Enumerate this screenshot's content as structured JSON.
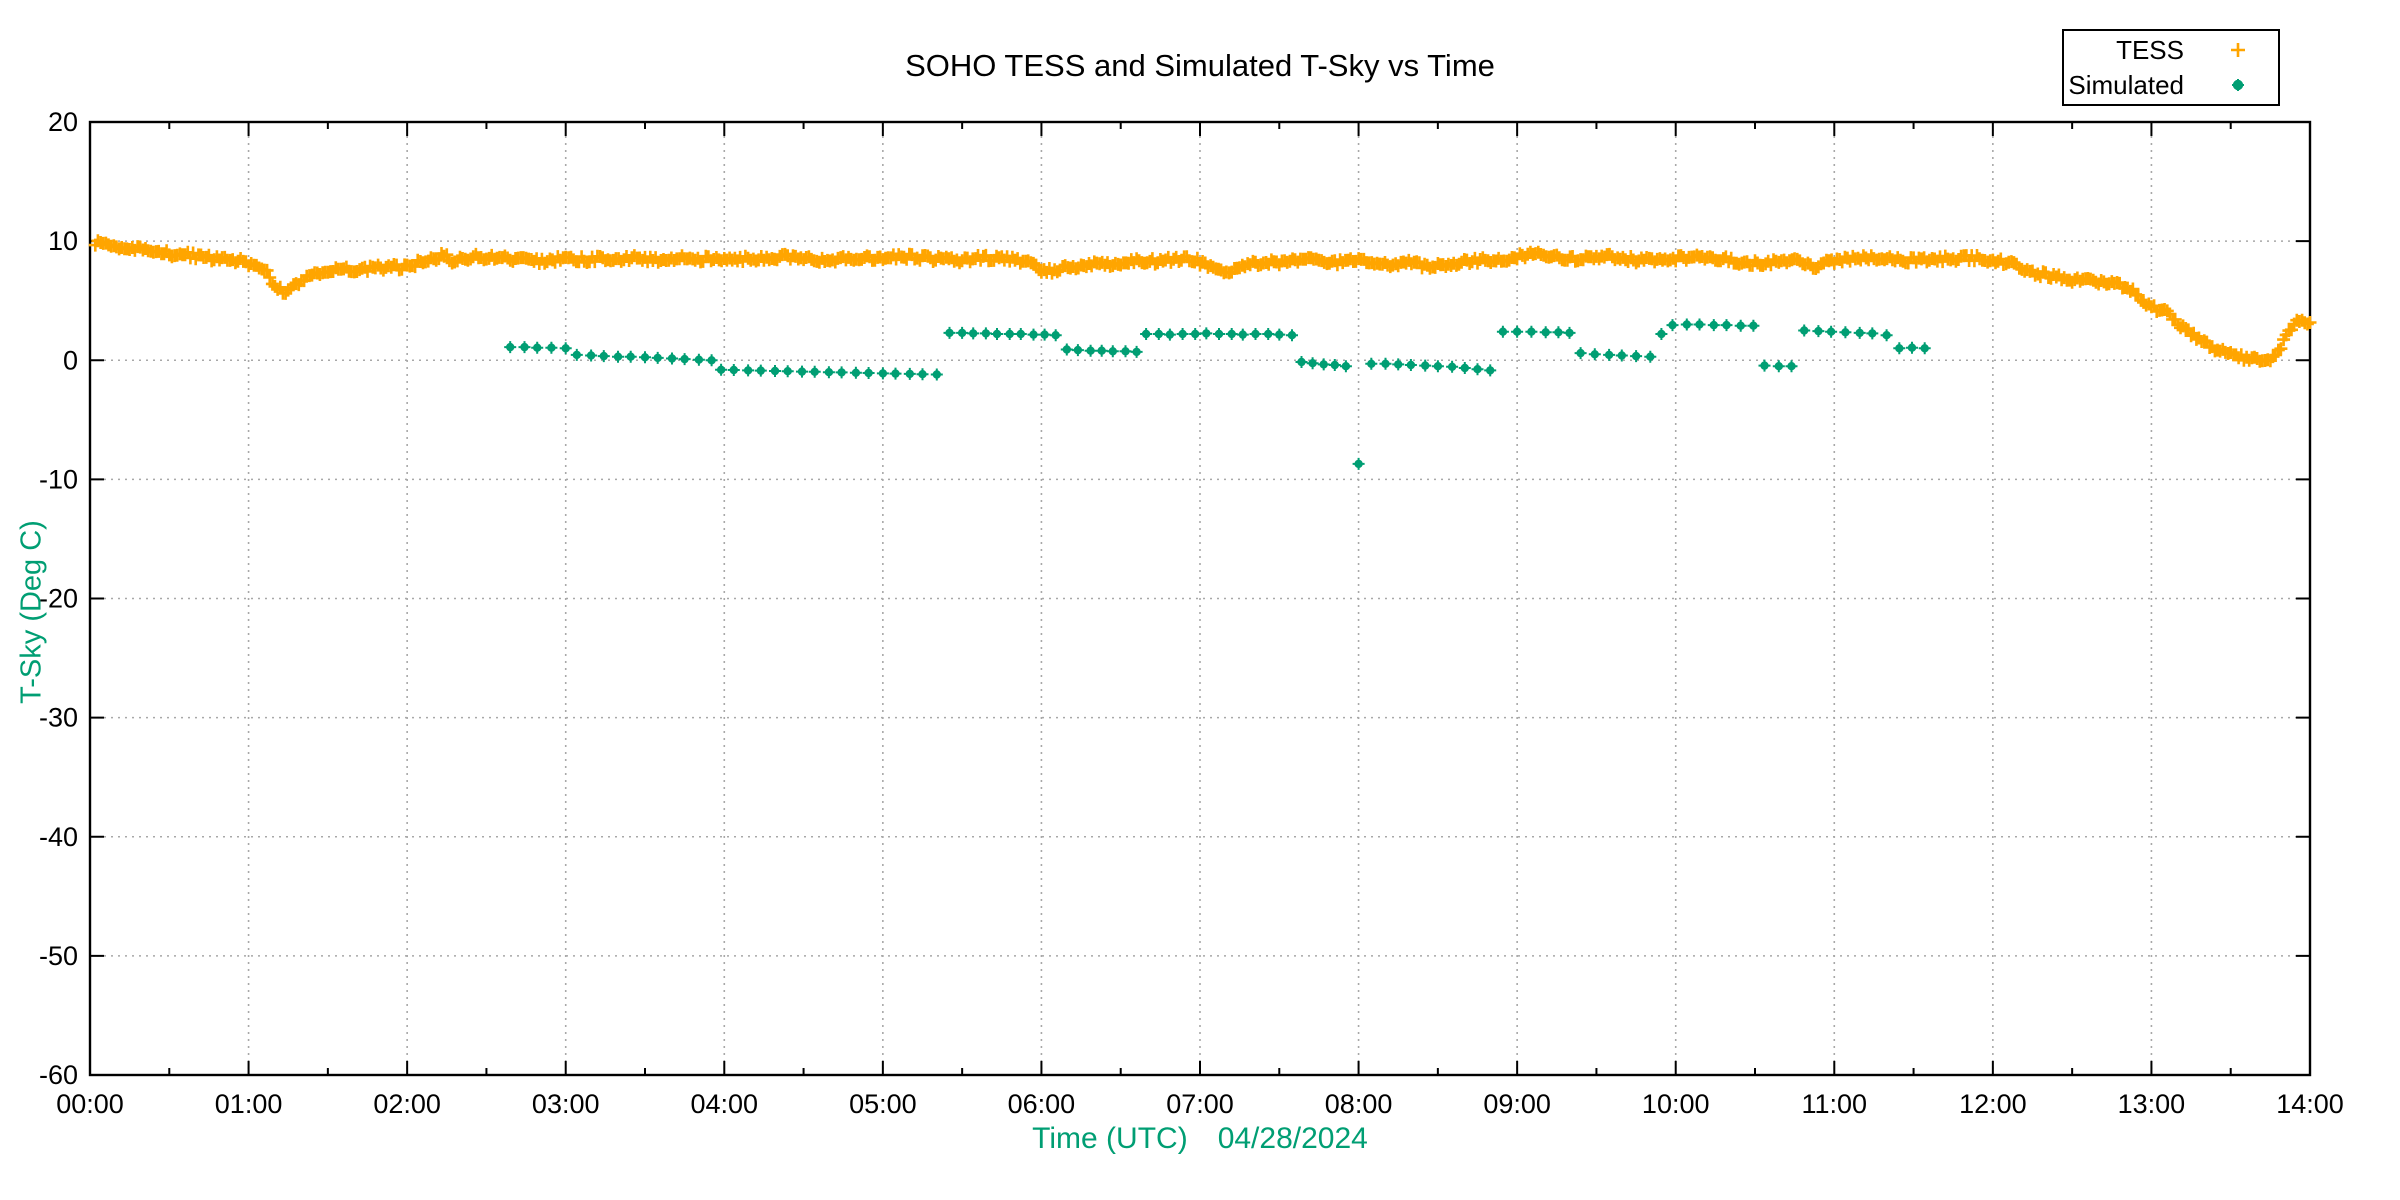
{
  "title": "SOHO TESS and Simulated T-Sky vs Time",
  "colors": {
    "tess_orange": "#FFA500",
    "simulated_green": "#009E73",
    "axis_label_green": "#009E73",
    "grid_gray": "#a8a8a8",
    "axis_black": "#000000",
    "background": "#ffffff"
  },
  "legend": {
    "items": [
      {
        "label": "TESS",
        "marker": "plus",
        "color": "#FFA500"
      },
      {
        "label": "Simulated",
        "marker": "dot",
        "color": "#009E73"
      }
    ]
  },
  "chart_data": {
    "type": "scatter",
    "title": "SOHO TESS and Simulated T-Sky vs Time",
    "xlabel": "Time (UTC)",
    "xlabel_date": "04/28/2024",
    "ylabel": "T-Sky (Deg C)",
    "xlim_hours": [
      0,
      14
    ],
    "ylim": [
      -60,
      20
    ],
    "x_tick_labels": [
      "00:00",
      "01:00",
      "02:00",
      "03:00",
      "04:00",
      "05:00",
      "06:00",
      "07:00",
      "08:00",
      "09:00",
      "10:00",
      "11:00",
      "12:00",
      "13:00",
      "14:00"
    ],
    "x_minor_tick_interval_hours": 0.5,
    "y_ticks": [
      20,
      10,
      0,
      -10,
      -20,
      -30,
      -40,
      -50,
      -60
    ],
    "grid": true,
    "legend_position": "top-right-outside",
    "series": [
      {
        "name": "TESS",
        "marker": "plus",
        "color": "#FFA500",
        "sampling": "one point per minute, 00:02 to 14:00, values follow trend below with ~±0.25 °C scatter",
        "trend": [
          [
            0.03,
            9.8
          ],
          [
            0.08,
            9.9
          ],
          [
            0.15,
            9.6
          ],
          [
            0.25,
            9.4
          ],
          [
            0.35,
            9.2
          ],
          [
            0.45,
            9.0
          ],
          [
            0.55,
            8.9
          ],
          [
            0.65,
            8.8
          ],
          [
            0.75,
            8.6
          ],
          [
            0.85,
            8.5
          ],
          [
            0.95,
            8.3
          ],
          [
            1.05,
            8.0
          ],
          [
            1.1,
            7.7
          ],
          [
            1.15,
            6.6
          ],
          [
            1.2,
            5.9
          ],
          [
            1.25,
            5.8
          ],
          [
            1.3,
            6.3
          ],
          [
            1.35,
            6.9
          ],
          [
            1.45,
            7.4
          ],
          [
            1.55,
            7.6
          ],
          [
            1.65,
            7.6
          ],
          [
            1.75,
            7.7
          ],
          [
            1.85,
            7.8
          ],
          [
            1.95,
            7.8
          ],
          [
            2.05,
            8.1
          ],
          [
            2.15,
            8.4
          ],
          [
            2.22,
            8.9
          ],
          [
            2.28,
            8.4
          ],
          [
            2.35,
            8.5
          ],
          [
            2.45,
            8.7
          ],
          [
            2.55,
            8.6
          ],
          [
            2.65,
            8.5
          ],
          [
            2.75,
            8.4
          ],
          [
            2.85,
            8.3
          ],
          [
            2.95,
            8.5
          ],
          [
            3.05,
            8.5
          ],
          [
            3.15,
            8.4
          ],
          [
            3.25,
            8.6
          ],
          [
            3.35,
            8.5
          ],
          [
            3.45,
            8.6
          ],
          [
            3.55,
            8.4
          ],
          [
            3.65,
            8.5
          ],
          [
            3.75,
            8.6
          ],
          [
            3.85,
            8.5
          ],
          [
            3.95,
            8.6
          ],
          [
            4.05,
            8.6
          ],
          [
            4.15,
            8.5
          ],
          [
            4.25,
            8.6
          ],
          [
            4.35,
            8.7
          ],
          [
            4.45,
            8.7
          ],
          [
            4.55,
            8.5
          ],
          [
            4.65,
            8.4
          ],
          [
            4.75,
            8.6
          ],
          [
            4.85,
            8.5
          ],
          [
            4.95,
            8.6
          ],
          [
            5.05,
            8.7
          ],
          [
            5.15,
            8.7
          ],
          [
            5.25,
            8.6
          ],
          [
            5.35,
            8.5
          ],
          [
            5.45,
            8.4
          ],
          [
            5.55,
            8.5
          ],
          [
            5.65,
            8.6
          ],
          [
            5.75,
            8.6
          ],
          [
            5.85,
            8.4
          ],
          [
            5.92,
            8.1
          ],
          [
            6.0,
            7.6
          ],
          [
            6.05,
            7.5
          ],
          [
            6.12,
            7.7
          ],
          [
            6.2,
            7.9
          ],
          [
            6.3,
            8.1
          ],
          [
            6.4,
            8.0
          ],
          [
            6.5,
            8.2
          ],
          [
            6.6,
            8.4
          ],
          [
            6.7,
            8.3
          ],
          [
            6.8,
            8.4
          ],
          [
            6.9,
            8.5
          ],
          [
            6.97,
            8.4
          ],
          [
            7.05,
            7.9
          ],
          [
            7.1,
            7.5
          ],
          [
            7.15,
            7.4
          ],
          [
            7.22,
            7.7
          ],
          [
            7.3,
            8.0
          ],
          [
            7.4,
            8.2
          ],
          [
            7.5,
            8.2
          ],
          [
            7.6,
            8.4
          ],
          [
            7.7,
            8.4
          ],
          [
            7.8,
            8.2
          ],
          [
            7.9,
            8.3
          ],
          [
            8.0,
            8.3
          ],
          [
            8.1,
            8.1
          ],
          [
            8.2,
            8.0
          ],
          [
            8.3,
            8.2
          ],
          [
            8.4,
            8.0
          ],
          [
            8.5,
            7.9
          ],
          [
            8.6,
            8.1
          ],
          [
            8.7,
            8.3
          ],
          [
            8.8,
            8.4
          ],
          [
            8.9,
            8.4
          ],
          [
            9.0,
            8.7
          ],
          [
            9.08,
            8.9
          ],
          [
            9.15,
            8.8
          ],
          [
            9.25,
            8.6
          ],
          [
            9.35,
            8.5
          ],
          [
            9.45,
            8.6
          ],
          [
            9.55,
            8.8
          ],
          [
            9.65,
            8.6
          ],
          [
            9.75,
            8.4
          ],
          [
            9.85,
            8.5
          ],
          [
            9.95,
            8.5
          ],
          [
            10.05,
            8.6
          ],
          [
            10.15,
            8.7
          ],
          [
            10.25,
            8.6
          ],
          [
            10.35,
            8.4
          ],
          [
            10.45,
            8.2
          ],
          [
            10.55,
            8.1
          ],
          [
            10.65,
            8.3
          ],
          [
            10.75,
            8.5
          ],
          [
            10.82,
            8.1
          ],
          [
            10.88,
            7.9
          ],
          [
            10.95,
            8.2
          ],
          [
            11.05,
            8.4
          ],
          [
            11.15,
            8.6
          ],
          [
            11.25,
            8.5
          ],
          [
            11.35,
            8.6
          ],
          [
            11.45,
            8.4
          ],
          [
            11.55,
            8.4
          ],
          [
            11.65,
            8.5
          ],
          [
            11.75,
            8.5
          ],
          [
            11.85,
            8.6
          ],
          [
            11.95,
            8.5
          ],
          [
            12.05,
            8.3
          ],
          [
            12.15,
            7.9
          ],
          [
            12.25,
            7.4
          ],
          [
            12.35,
            7.1
          ],
          [
            12.45,
            6.9
          ],
          [
            12.55,
            6.7
          ],
          [
            12.65,
            6.6
          ],
          [
            12.75,
            6.5
          ],
          [
            12.82,
            6.3
          ],
          [
            12.88,
            5.9
          ],
          [
            12.93,
            5.3
          ],
          [
            12.98,
            4.6
          ],
          [
            13.03,
            4.3
          ],
          [
            13.08,
            4.2
          ],
          [
            13.13,
            3.6
          ],
          [
            13.18,
            3.0
          ],
          [
            13.25,
            2.3
          ],
          [
            13.32,
            1.6
          ],
          [
            13.4,
            1.0
          ],
          [
            13.48,
            0.5
          ],
          [
            13.55,
            0.3
          ],
          [
            13.62,
            0.1
          ],
          [
            13.68,
            -0.1
          ],
          [
            13.73,
            0.0
          ],
          [
            13.78,
            0.5
          ],
          [
            13.83,
            1.4
          ],
          [
            13.87,
            2.5
          ],
          [
            13.92,
            3.2
          ],
          [
            13.96,
            3.4
          ],
          [
            14.0,
            3.1
          ]
        ]
      },
      {
        "name": "Simulated",
        "marker": "dot",
        "color": "#009E73",
        "points": [
          [
            2.65,
            1.1
          ],
          [
            2.74,
            1.1
          ],
          [
            2.82,
            1.05
          ],
          [
            2.91,
            1.05
          ],
          [
            3.0,
            1.0
          ],
          [
            3.07,
            0.45
          ],
          [
            3.16,
            0.4
          ],
          [
            3.24,
            0.35
          ],
          [
            3.33,
            0.3
          ],
          [
            3.41,
            0.3
          ],
          [
            3.5,
            0.25
          ],
          [
            3.58,
            0.2
          ],
          [
            3.67,
            0.15
          ],
          [
            3.75,
            0.1
          ],
          [
            3.84,
            0.05
          ],
          [
            3.92,
            0.0
          ],
          [
            3.98,
            -0.8
          ],
          [
            4.06,
            -0.82
          ],
          [
            4.15,
            -0.85
          ],
          [
            4.23,
            -0.87
          ],
          [
            4.32,
            -0.9
          ],
          [
            4.4,
            -0.92
          ],
          [
            4.49,
            -0.95
          ],
          [
            4.57,
            -0.97
          ],
          [
            4.66,
            -1.0
          ],
          [
            4.74,
            -1.02
          ],
          [
            4.83,
            -1.05
          ],
          [
            4.91,
            -1.07
          ],
          [
            5.0,
            -1.1
          ],
          [
            5.08,
            -1.12
          ],
          [
            5.17,
            -1.15
          ],
          [
            5.25,
            -1.17
          ],
          [
            5.34,
            -1.2
          ],
          [
            5.42,
            2.3
          ],
          [
            5.5,
            2.3
          ],
          [
            5.57,
            2.25
          ],
          [
            5.65,
            2.25
          ],
          [
            5.72,
            2.2
          ],
          [
            5.8,
            2.2
          ],
          [
            5.87,
            2.2
          ],
          [
            5.95,
            2.15
          ],
          [
            6.02,
            2.15
          ],
          [
            6.09,
            2.1
          ],
          [
            6.16,
            0.9
          ],
          [
            6.23,
            0.85
          ],
          [
            6.31,
            0.8
          ],
          [
            6.38,
            0.8
          ],
          [
            6.45,
            0.75
          ],
          [
            6.53,
            0.75
          ],
          [
            6.6,
            0.7
          ],
          [
            6.66,
            2.2
          ],
          [
            6.74,
            2.2
          ],
          [
            6.81,
            2.15
          ],
          [
            6.89,
            2.2
          ],
          [
            6.97,
            2.2
          ],
          [
            7.04,
            2.25
          ],
          [
            7.12,
            2.2
          ],
          [
            7.2,
            2.2
          ],
          [
            7.27,
            2.15
          ],
          [
            7.35,
            2.2
          ],
          [
            7.43,
            2.2
          ],
          [
            7.5,
            2.15
          ],
          [
            7.58,
            2.1
          ],
          [
            7.64,
            -0.15
          ],
          [
            7.71,
            -0.25
          ],
          [
            7.78,
            -0.35
          ],
          [
            7.85,
            -0.4
          ],
          [
            7.92,
            -0.5
          ],
          [
            8.0,
            -8.7
          ],
          [
            8.08,
            -0.3
          ],
          [
            8.17,
            -0.3
          ],
          [
            8.25,
            -0.35
          ],
          [
            8.33,
            -0.4
          ],
          [
            8.42,
            -0.45
          ],
          [
            8.5,
            -0.5
          ],
          [
            8.59,
            -0.55
          ],
          [
            8.67,
            -0.65
          ],
          [
            8.75,
            -0.75
          ],
          [
            8.83,
            -0.85
          ],
          [
            8.91,
            2.4
          ],
          [
            9.0,
            2.4
          ],
          [
            9.09,
            2.4
          ],
          [
            9.18,
            2.35
          ],
          [
            9.26,
            2.35
          ],
          [
            9.33,
            2.3
          ],
          [
            9.4,
            0.6
          ],
          [
            9.49,
            0.5
          ],
          [
            9.58,
            0.45
          ],
          [
            9.66,
            0.4
          ],
          [
            9.75,
            0.35
          ],
          [
            9.84,
            0.3
          ],
          [
            9.91,
            2.2
          ],
          [
            9.98,
            2.95
          ],
          [
            10.07,
            3.0
          ],
          [
            10.15,
            3.0
          ],
          [
            10.24,
            2.95
          ],
          [
            10.32,
            2.95
          ],
          [
            10.41,
            2.9
          ],
          [
            10.49,
            2.9
          ],
          [
            10.56,
            -0.45
          ],
          [
            10.65,
            -0.5
          ],
          [
            10.73,
            -0.5
          ],
          [
            10.81,
            2.5
          ],
          [
            10.9,
            2.45
          ],
          [
            10.98,
            2.4
          ],
          [
            11.07,
            2.35
          ],
          [
            11.16,
            2.3
          ],
          [
            11.24,
            2.25
          ],
          [
            11.33,
            2.1
          ],
          [
            11.41,
            1.0
          ],
          [
            11.49,
            1.05
          ],
          [
            11.57,
            1.0
          ]
        ]
      }
    ]
  }
}
